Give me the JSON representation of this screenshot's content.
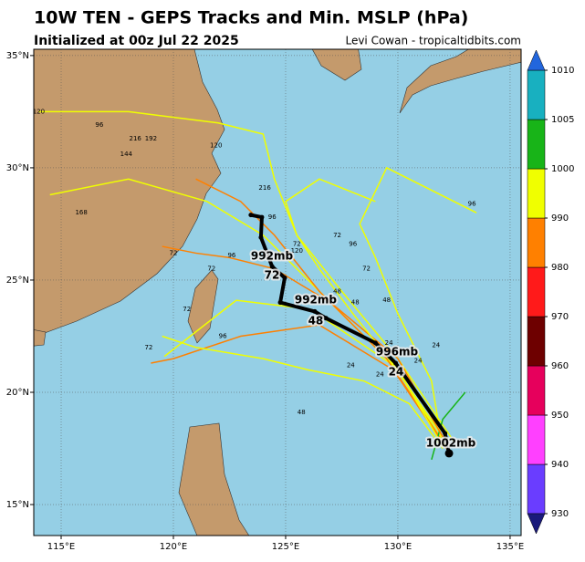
{
  "chart_data": {
    "type": "map",
    "title": "10W TEN - GEPS Tracks and Min. MSLP (hPa)",
    "subtitle": "Initialized at 00z Jul 22 2025",
    "credit": "Levi Cowan - tropicaltidbits.com",
    "xlim": [
      113.78,
      135.49
    ],
    "ylim": [
      13.62,
      35.28
    ],
    "xticks": [
      {
        "value": 115,
        "label": "115°E"
      },
      {
        "value": 120,
        "label": "120°E"
      },
      {
        "value": 125,
        "label": "125°E"
      },
      {
        "value": 130,
        "label": "130°E"
      },
      {
        "value": 135,
        "label": "135°E"
      }
    ],
    "yticks": [
      {
        "value": 15,
        "label": "15°N"
      },
      {
        "value": 20,
        "label": "20°N"
      },
      {
        "value": 25,
        "label": "25°N"
      },
      {
        "value": 30,
        "label": "30°N"
      },
      {
        "value": 35,
        "label": "35°N"
      }
    ],
    "grid": true,
    "colorbar": {
      "ticks": [
        930,
        940,
        950,
        960,
        970,
        980,
        990,
        1000,
        1005,
        1010
      ],
      "colors": [
        "#6a3dff",
        "#ff40ff",
        "#e6005c",
        "#6e0000",
        "#ff1a1a",
        "#ff8000",
        "#f0ff00",
        "#18b418",
        "#18b0c0"
      ],
      "under": "#1a1a7a",
      "over": "#2266dd"
    },
    "tracks": [
      {
        "color": "#f0ff00",
        "lon": [
          132.3,
          129.8,
          126.1,
          122.8,
          119.6
        ],
        "lat": [
          17.6,
          21.2,
          23.7,
          24.1,
          21.6
        ]
      },
      {
        "color": "#f0ff00",
        "lon": [
          132.2,
          130.0,
          127.0,
          124.0,
          121.5,
          118.0,
          114.5
        ],
        "lat": [
          17.5,
          21.0,
          24.0,
          27.0,
          28.5,
          29.5,
          28.8
        ]
      },
      {
        "color": "#ff8000",
        "lon": [
          132.0,
          129.5,
          126.5,
          124.5,
          123.0,
          121.0
        ],
        "lat": [
          17.8,
          21.5,
          24.5,
          27.0,
          28.5,
          29.5
        ]
      },
      {
        "color": "#f0ff00",
        "lon": [
          132.5,
          130.0,
          127.5,
          125.5,
          124.5,
          124.0,
          122.0,
          118.0,
          114.0
        ],
        "lat": [
          17.8,
          21.5,
          24.5,
          27.0,
          29.5,
          31.5,
          32.0,
          32.5,
          32.5
        ]
      },
      {
        "color": "#ff8000",
        "lon": [
          132.3,
          129.8,
          126.5,
          123.0,
          120.0,
          119.0
        ],
        "lat": [
          17.3,
          21.0,
          23.0,
          22.5,
          21.5,
          21.3
        ]
      },
      {
        "color": "#f0ff00",
        "lon": [
          132.0,
          130.5,
          128.5,
          126.0,
          124.0,
          121.0,
          119.5
        ],
        "lat": [
          17.5,
          19.5,
          20.5,
          21.0,
          21.5,
          22.0,
          22.5
        ]
      },
      {
        "color": "#18b418",
        "lon": [
          131.5,
          132.0,
          133.0
        ],
        "lat": [
          17.0,
          18.8,
          20.0
        ]
      },
      {
        "color": "#f0ff00",
        "lon": [
          132.0,
          131.5,
          130.0,
          129.0,
          128.3,
          129.5,
          133.5
        ],
        "lat": [
          17.5,
          20.5,
          23.5,
          26.0,
          27.5,
          30.0,
          28.0
        ]
      },
      {
        "color": "#ff8000",
        "lon": [
          132.3,
          130.0,
          127.0,
          124.5,
          122.5,
          121.0,
          119.5
        ],
        "lat": [
          17.5,
          21.5,
          24.0,
          25.5,
          26.0,
          26.2,
          26.5
        ]
      },
      {
        "color": "#f0ff00",
        "lon": [
          132.0,
          130.0,
          128.0,
          126.5,
          125.5,
          125.0,
          126.5,
          129.0
        ],
        "lat": [
          17.6,
          21.0,
          23.5,
          25.5,
          27.0,
          28.5,
          29.5,
          28.5
        ]
      }
    ],
    "mean_track": {
      "lon": [
        132.28,
        132.1,
        129.9,
        129.0,
        126.8,
        126.3,
        124.76,
        124.96,
        124.4,
        123.9,
        123.94,
        123.45
      ],
      "lat": [
        17.28,
        18.17,
        21.3,
        22.2,
        23.3,
        23.6,
        24.0,
        25.1,
        25.6,
        26.9,
        27.8,
        27.9
      ]
    },
    "mean_labels": [
      {
        "text": "1002mb",
        "lon": 132.36,
        "lat": 17.72
      },
      {
        "text": "996mb",
        "lon": 129.96,
        "lat": 21.79
      },
      {
        "text": "24",
        "lon": 129.92,
        "lat": 20.9
      },
      {
        "text": "992mb",
        "lon": 126.34,
        "lat": 24.11
      },
      {
        "text": "48",
        "lon": 126.34,
        "lat": 23.17
      },
      {
        "text": "992mb",
        "lon": 124.39,
        "lat": 26.06
      },
      {
        "text": "72",
        "lon": 124.39,
        "lat": 25.2
      }
    ],
    "hour_labels": [
      {
        "hour": 120,
        "lon": 114.0,
        "lat": 32.5
      },
      {
        "hour": 96,
        "lon": 116.7,
        "lat": 31.9
      },
      {
        "hour": 144,
        "lon": 117.9,
        "lat": 30.6
      },
      {
        "hour": 168,
        "lon": 115.9,
        "lat": 28.0
      },
      {
        "hour": 120,
        "lon": 121.9,
        "lat": 31.0
      },
      {
        "hour": 216,
        "lon": 118.3,
        "lat": 31.3
      },
      {
        "hour": 192,
        "lon": 119.0,
        "lat": 31.3
      },
      {
        "hour": 216,
        "lon": 124.07,
        "lat": 29.1
      },
      {
        "hour": 96,
        "lon": 124.4,
        "lat": 27.8
      },
      {
        "hour": 72,
        "lon": 120.0,
        "lat": 26.2
      },
      {
        "hour": 72,
        "lon": 121.7,
        "lat": 25.5
      },
      {
        "hour": 96,
        "lon": 122.6,
        "lat": 26.1
      },
      {
        "hour": 72,
        "lon": 125.5,
        "lat": 26.6
      },
      {
        "hour": 120,
        "lon": 125.5,
        "lat": 26.3
      },
      {
        "hour": 72,
        "lon": 127.3,
        "lat": 27.0
      },
      {
        "hour": 96,
        "lon": 128.0,
        "lat": 26.6
      },
      {
        "hour": 72,
        "lon": 128.6,
        "lat": 25.5
      },
      {
        "hour": 48,
        "lon": 127.3,
        "lat": 24.5
      },
      {
        "hour": 48,
        "lon": 128.1,
        "lat": 24.0
      },
      {
        "hour": 48,
        "lon": 129.5,
        "lat": 24.1
      },
      {
        "hour": 24,
        "lon": 129.6,
        "lat": 22.2
      },
      {
        "hour": 24,
        "lon": 130.9,
        "lat": 21.4
      },
      {
        "hour": 24,
        "lon": 129.2,
        "lat": 20.8
      },
      {
        "hour": 24,
        "lon": 127.9,
        "lat": 21.2
      },
      {
        "hour": 48,
        "lon": 125.7,
        "lat": 19.1
      },
      {
        "hour": 72,
        "lon": 118.9,
        "lat": 22.0
      },
      {
        "hour": 72,
        "lon": 120.6,
        "lat": 23.7
      },
      {
        "hour": 96,
        "lon": 122.2,
        "lat": 22.5
      },
      {
        "hour": 24,
        "lon": 131.7,
        "lat": 22.1
      },
      {
        "hour": 96,
        "lon": 133.3,
        "lat": 28.4
      }
    ]
  }
}
